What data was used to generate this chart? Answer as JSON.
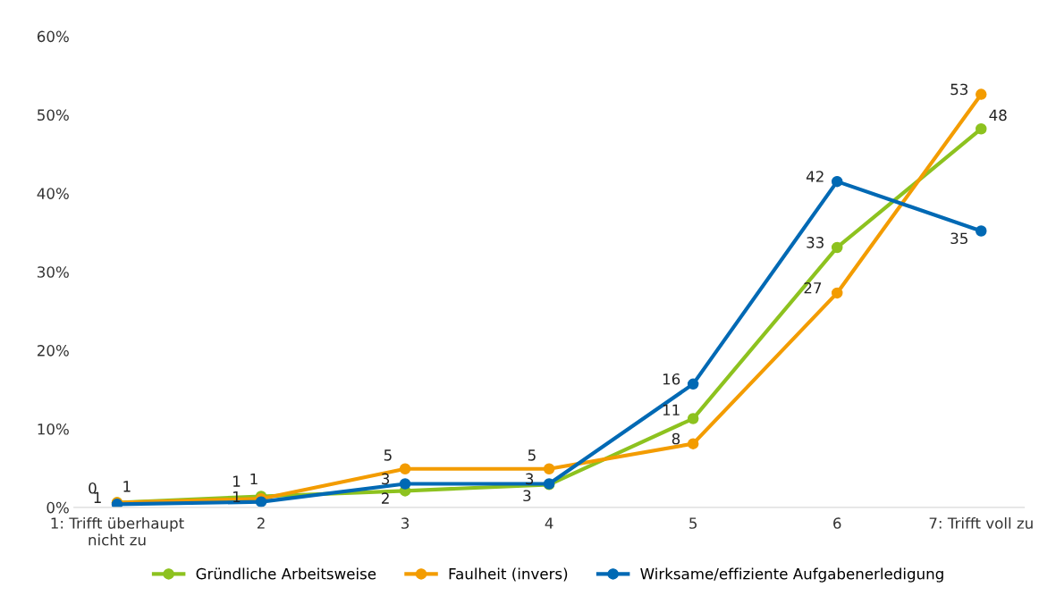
{
  "chart_data": {
    "type": "line",
    "categories": [
      "1: Trifft überhaupt\nnicht zu",
      "2",
      "3",
      "4",
      "5",
      "6",
      "7: Trifft voll zu"
    ],
    "ylim": [
      0,
      60
    ],
    "yticks": [
      {
        "value": 0,
        "label": "0%"
      },
      {
        "value": 10,
        "label": "10%"
      },
      {
        "value": 20,
        "label": "20%"
      },
      {
        "value": 30,
        "label": "30%"
      },
      {
        "value": 40,
        "label": "40%"
      },
      {
        "value": 50,
        "label": "50%"
      },
      {
        "value": 60,
        "label": "60%"
      }
    ],
    "grid": false,
    "legend": "bottom",
    "marker": "circle",
    "line_style": "solid",
    "series": [
      {
        "name": "Gründliche Arbeitsweise",
        "color": "#8dc21f",
        "values": [
          0.6,
          1.4,
          2.1,
          2.9,
          11.3,
          33.1,
          48.2
        ],
        "value_labels": [
          "1",
          "1",
          "2",
          "3",
          "11",
          "33",
          "48"
        ]
      },
      {
        "name": "Faulheit (invers)",
        "color": "#f39c00",
        "values": [
          0.6,
          1.1,
          4.9,
          4.9,
          8.1,
          27.3,
          52.6
        ],
        "value_labels": [
          "1",
          "1",
          "5",
          "5",
          "8",
          "27",
          "53"
        ]
      },
      {
        "name": "Wirksame/effiziente Aufgabenerledigung",
        "color": "#0069b4",
        "values": [
          0.4,
          0.7,
          3.0,
          3.0,
          15.7,
          41.5,
          35.2
        ],
        "value_labels": [
          "0",
          "1",
          "3",
          "3",
          "16",
          "42",
          "35"
        ]
      }
    ]
  }
}
